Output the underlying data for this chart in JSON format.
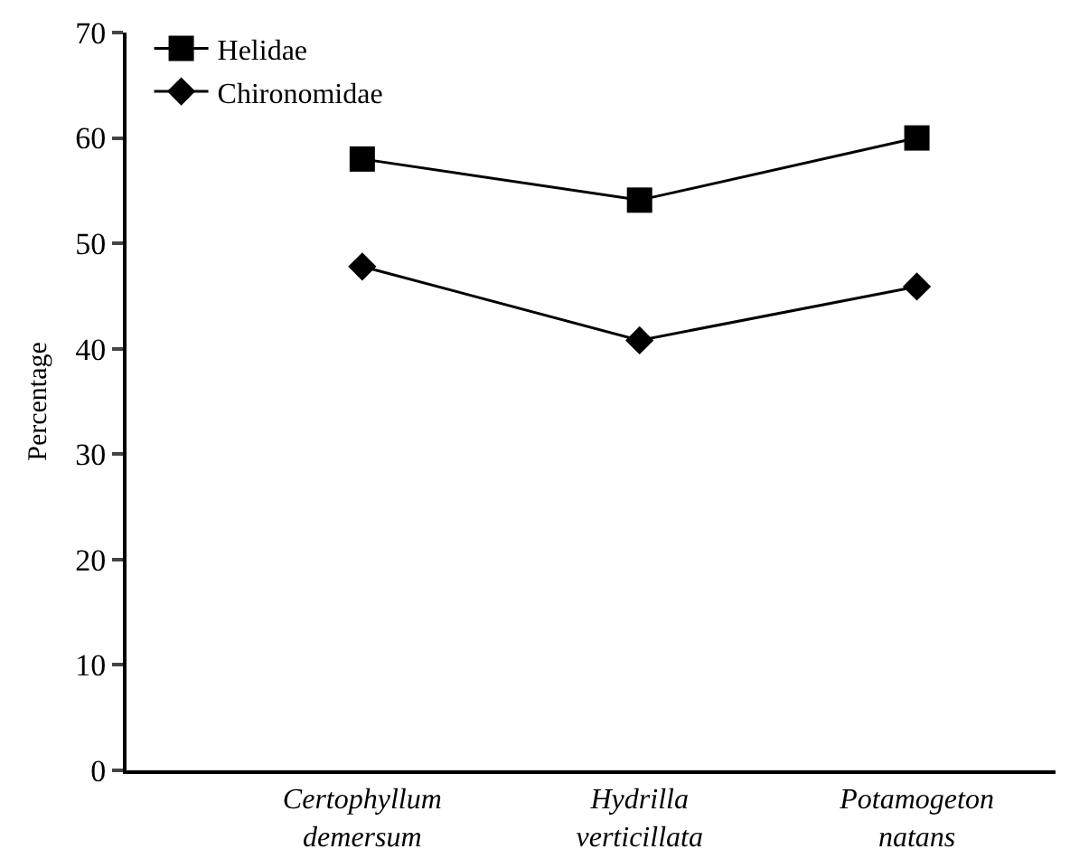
{
  "chart_data": {
    "type": "line",
    "ylabel": "Percentage",
    "categories": [
      "Certophyllum\ndemersum",
      "Hydrilla\nverticillata",
      "Potamogeton\nnatans"
    ],
    "series": [
      {
        "name": "Helidae",
        "color": "#000000",
        "marker": "square",
        "values": [
          58,
          54.1,
          60
        ]
      },
      {
        "name": "Chironomidae",
        "color": "#000000",
        "marker": "diamond",
        "values": [
          47.8,
          40.8,
          45.9
        ]
      }
    ],
    "ylim": [
      0,
      70
    ],
    "yticks": [
      0,
      10,
      20,
      30,
      40,
      50,
      60,
      70
    ],
    "grid": false,
    "legend": "top left",
    "line_style": "solid"
  }
}
